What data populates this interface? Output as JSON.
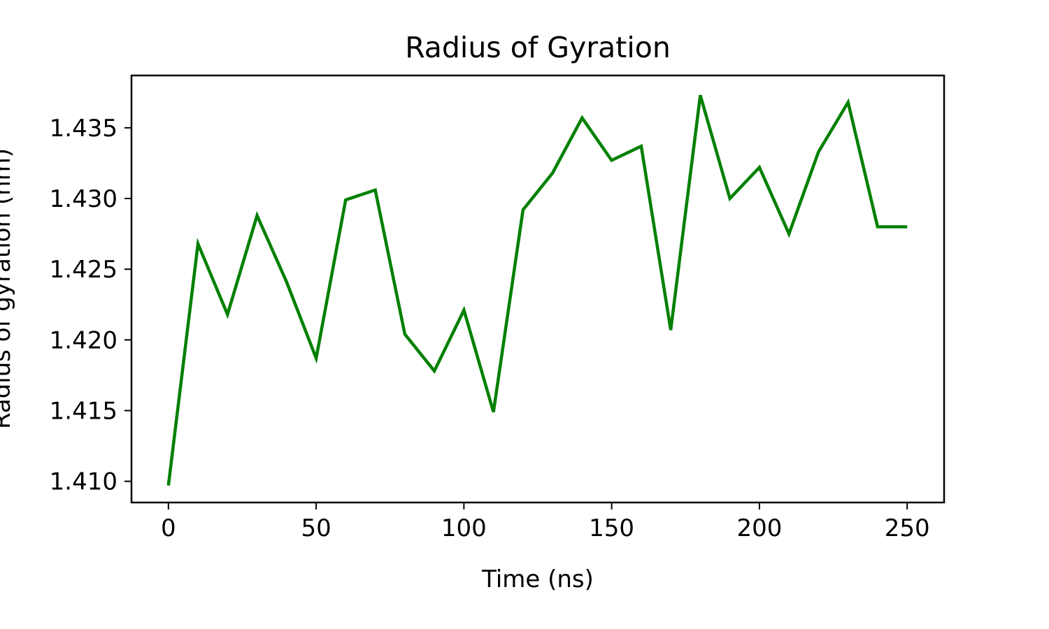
{
  "chart_data": {
    "type": "line",
    "title": "Radius of Gyration",
    "xlabel": "Time (ns)",
    "ylabel": "Radius of gyration (nm)",
    "xlim": [
      -12.5,
      262.5
    ],
    "ylim": [
      1.4085,
      1.4387
    ],
    "xticks": [
      0,
      50,
      100,
      150,
      200,
      250
    ],
    "xtick_labels": [
      "0",
      "50",
      "100",
      "150",
      "200",
      "250"
    ],
    "yticks": [
      1.41,
      1.415,
      1.42,
      1.425,
      1.43,
      1.435
    ],
    "ytick_labels": [
      "1.410",
      "1.415",
      "1.420",
      "1.425",
      "1.430",
      "1.435"
    ],
    "grid": false,
    "series": [
      {
        "color": "#008000",
        "x": [
          0,
          10,
          20,
          30,
          40,
          50,
          60,
          70,
          80,
          90,
          100,
          110,
          120,
          130,
          140,
          150,
          160,
          170,
          180,
          190,
          200,
          210,
          220,
          230,
          240,
          250
        ],
        "values": [
          1.4097,
          1.4268,
          1.4218,
          1.4288,
          1.4241,
          1.4187,
          1.4299,
          1.4306,
          1.4204,
          1.4178,
          1.4221,
          1.4149,
          1.4292,
          1.4318,
          1.4357,
          1.4327,
          1.4337,
          1.4207,
          1.4373,
          1.43,
          1.4322,
          1.4275,
          1.4333,
          1.4368,
          1.428,
          1.428
        ]
      }
    ]
  }
}
